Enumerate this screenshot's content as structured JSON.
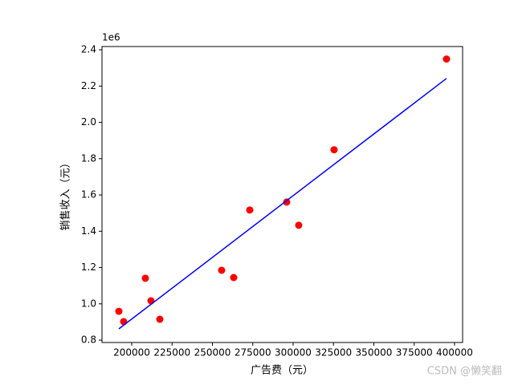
{
  "chart_data": {
    "type": "scatter",
    "x_label": "广告费（元）",
    "y_label": "销售收入（元）",
    "y_offset_text": "1e6",
    "watermark": "CSDN @懒笑翻",
    "xlim": [
      181600,
      405000
    ],
    "ylim": [
      787000,
      2418000
    ],
    "xticks": [
      200000,
      225000,
      250000,
      275000,
      300000,
      325000,
      350000,
      375000,
      400000
    ],
    "yticks": [
      {
        "value": 800000,
        "label": "0.8"
      },
      {
        "value": 1000000,
        "label": "1.0"
      },
      {
        "value": 1200000,
        "label": "1.2"
      },
      {
        "value": 1400000,
        "label": "1.4"
      },
      {
        "value": 1600000,
        "label": "1.6"
      },
      {
        "value": 1800000,
        "label": "1.8"
      },
      {
        "value": 2000000,
        "label": "2.0"
      },
      {
        "value": 2200000,
        "label": "2.2"
      },
      {
        "value": 2400000,
        "label": "2.4"
      }
    ],
    "series": [
      {
        "kind": "scatter",
        "color": "#ff0000",
        "x": [
          192040,
          195025,
          208458,
          211940,
          217413,
          255721,
          263184,
          273134,
          296020,
          303483,
          325373,
          395025
        ],
        "y": [
          959000,
          902000,
          1141000,
          1017000,
          915000,
          1185000,
          1145000,
          1517000,
          1561000,
          1433000,
          1849000,
          2349000
        ]
      },
      {
        "kind": "line",
        "color": "#0000ff",
        "x": [
          192040,
          395025
        ],
        "y": [
          862000,
          2242000
        ]
      }
    ]
  }
}
